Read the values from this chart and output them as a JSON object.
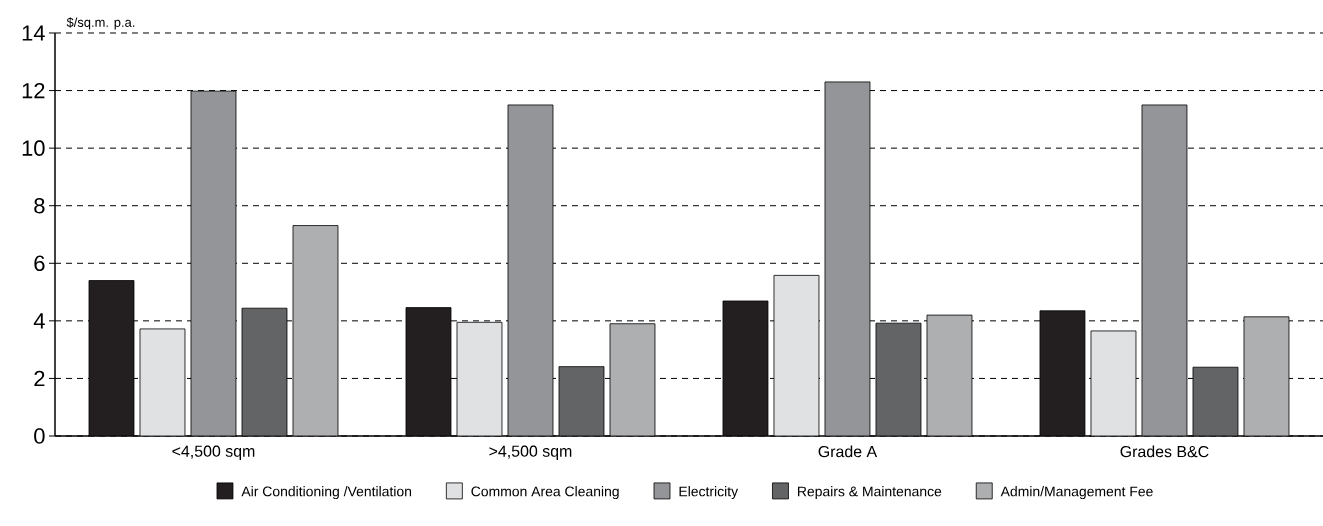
{
  "chart_data": {
    "type": "bar",
    "ylabel": "$/sq.m. p.a.",
    "categories": [
      "<4,500 sqm",
      ">4,500  sqm",
      "Grade A",
      "Grades B&C"
    ],
    "series": [
      {
        "name": "Air Conditioning /Ventilation",
        "color": "#231f20",
        "values": [
          5.4,
          4.46,
          4.69,
          4.35
        ]
      },
      {
        "name": "Common Area Cleaning",
        "color": "#e0e1e3",
        "values": [
          3.72,
          3.95,
          5.58,
          3.65
        ]
      },
      {
        "name": "Electricity",
        "color": "#939598",
        "values": [
          11.98,
          11.5,
          12.3,
          11.5
        ]
      },
      {
        "name": "Repairs & Maintenance",
        "color": "#636466",
        "values": [
          4.44,
          2.41,
          3.92,
          2.39
        ]
      },
      {
        "name": "Admin/Management Fee",
        "color": "#aeafb1",
        "values": [
          7.31,
          3.9,
          4.2,
          4.14
        ]
      }
    ],
    "ylim": [
      0,
      14
    ],
    "yticks": [
      0,
      2,
      4,
      6,
      8,
      10,
      12,
      14
    ],
    "grid": "y",
    "legend": "bottom"
  }
}
